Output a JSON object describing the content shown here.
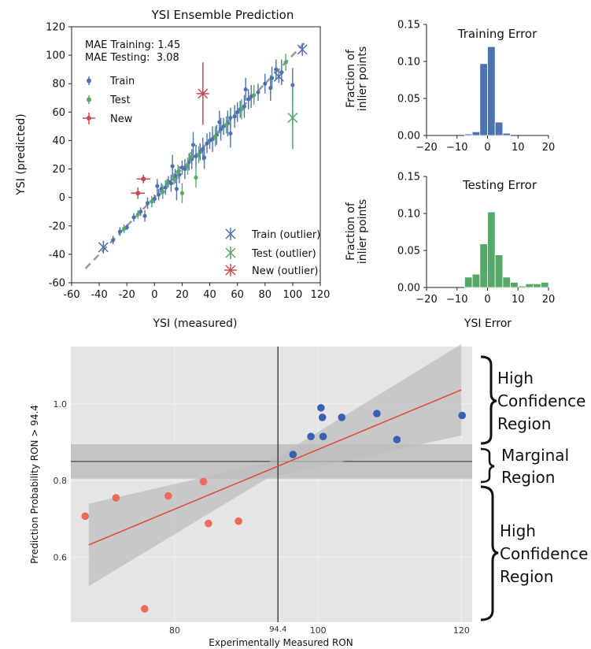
{
  "charts": {
    "scatter": {
      "title": "YSI Ensemble Prediction",
      "xlabel": "YSI (measured)",
      "ylabel": "YSI (predicted)",
      "mae_training": "MAE Training: 1.45",
      "mae_testing": "MAE Testing:  3.08",
      "legend_train": "Train",
      "legend_test": "Test",
      "legend_new": "New",
      "legend_train_outlier": "Train (outlier)",
      "legend_test_outlier": "Test (outlier)",
      "legend_new_outlier": "New (outlier)"
    },
    "hist_train": {
      "title": "Training Error",
      "ylabel_line1": "Fraction of",
      "ylabel_line2": "inlier points"
    },
    "hist_test": {
      "title": "Testing Error",
      "ylabel_line1": "Fraction of",
      "ylabel_line2": "inlier points",
      "xlabel": "YSI Error"
    },
    "ron": {
      "xlabel": "Experimentally Measured RON",
      "ylabel": "Prediction Probability  RON > 94.4",
      "vline_label": "94.4"
    }
  },
  "annotations": {
    "high_top": [
      "High",
      "Confidence",
      "Region"
    ],
    "marginal": [
      "Marginal",
      "Region"
    ],
    "high_bottom": [
      "High",
      "Confidence",
      "Region"
    ]
  },
  "colors": {
    "train": "#4c72b0",
    "test": "#55a868",
    "new": "#c44e52",
    "ron_high": "#3a5fb8",
    "ron_low": "#ee6a5a",
    "fit_line": "#e24a33",
    "panel_bg": "#e5e5e5"
  },
  "chart_data": [
    {
      "type": "scatter",
      "title": "YSI Ensemble Prediction",
      "xlabel": "YSI (measured)",
      "ylabel": "YSI (predicted)",
      "xlim": [
        -60,
        120
      ],
      "ylim": [
        -60,
        120
      ],
      "xticks": [
        -60,
        -40,
        -20,
        0,
        20,
        40,
        60,
        80,
        100,
        120
      ],
      "yticks": [
        -60,
        -40,
        -20,
        0,
        20,
        40,
        60,
        80,
        100,
        120
      ],
      "reference_line": [
        [
          -50,
          -50
        ],
        [
          110,
          110
        ]
      ],
      "legend": [
        "Train",
        "Test",
        "New",
        "Train (outlier)",
        "Test (outlier)",
        "New (outlier)"
      ],
      "series": [
        {
          "name": "Train",
          "points": [
            [
              -30,
              -30,
              3
            ],
            [
              -25,
              -24,
              3
            ],
            [
              -20,
              -21,
              2
            ],
            [
              -15,
              -14,
              3
            ],
            [
              -10,
              -10,
              3
            ],
            [
              -5,
              -4,
              4
            ],
            [
              0,
              -1,
              3
            ],
            [
              3,
              2,
              4
            ],
            [
              5,
              6,
              4
            ],
            [
              8,
              7,
              5
            ],
            [
              10,
              11,
              4
            ],
            [
              12,
              10,
              6
            ],
            [
              15,
              15,
              5
            ],
            [
              18,
              16,
              6
            ],
            [
              20,
              21,
              5
            ],
            [
              22,
              20,
              7
            ],
            [
              25,
              25,
              6
            ],
            [
              27,
              27,
              7
            ],
            [
              30,
              29,
              8
            ],
            [
              33,
              32,
              6
            ],
            [
              35,
              34,
              8
            ],
            [
              38,
              38,
              7
            ],
            [
              40,
              40,
              6
            ],
            [
              42,
              41,
              9
            ],
            [
              45,
              44,
              7
            ],
            [
              48,
              48,
              8
            ],
            [
              50,
              50,
              6
            ],
            [
              53,
              52,
              9
            ],
            [
              55,
              56,
              7
            ],
            [
              58,
              57,
              8
            ],
            [
              60,
              60,
              7
            ],
            [
              62,
              62,
              6
            ],
            [
              65,
              64,
              8
            ],
            [
              68,
              69,
              7
            ],
            [
              70,
              71,
              8
            ],
            [
              75,
              74,
              6
            ],
            [
              80,
              80,
              7
            ],
            [
              85,
              84,
              8
            ],
            [
              88,
              90,
              7
            ],
            [
              92,
              88,
              9
            ],
            [
              100,
              79,
              12
            ],
            [
              2,
              8,
              5
            ],
            [
              13,
              22,
              8
            ],
            [
              28,
              37,
              9
            ],
            [
              47,
              53,
              8
            ],
            [
              16,
              6,
              8
            ],
            [
              36,
              28,
              8
            ],
            [
              55,
              45,
              10
            ],
            [
              -7,
              -13,
              4
            ],
            [
              66,
              76,
              8
            ],
            [
              84,
              77,
              9
            ]
          ]
        },
        {
          "name": "Test",
          "points": [
            [
              -22,
              -22,
              3
            ],
            [
              -12,
              -12,
              3
            ],
            [
              -2,
              -3,
              4
            ],
            [
              6,
              4,
              5
            ],
            [
              14,
              13,
              4
            ],
            [
              17,
              18,
              5
            ],
            [
              24,
              22,
              6
            ],
            [
              32,
              30,
              6
            ],
            [
              44,
              43,
              7
            ],
            [
              52,
              51,
              6
            ],
            [
              63,
              62,
              7
            ],
            [
              72,
              72,
              7
            ],
            [
              95,
              95,
              6
            ],
            [
              9,
              10,
              3
            ],
            [
              26,
              28,
              4
            ],
            [
              20,
              3,
              7
            ],
            [
              30,
              14,
              7
            ]
          ]
        },
        {
          "name": "New",
          "points": [
            [
              -8,
              13,
              3
            ],
            [
              -12,
              3,
              4
            ]
          ]
        },
        {
          "name": "Train (outlier)",
          "points": [
            [
              -37,
              -35
            ],
            [
              107,
              104
            ],
            [
              90,
              85
            ]
          ]
        },
        {
          "name": "Test (outlier)",
          "points": [
            [
              100,
              56
            ]
          ]
        },
        {
          "name": "New (outlier)",
          "points": [
            [
              35,
              73
            ]
          ]
        }
      ]
    },
    {
      "type": "bar",
      "title": "Training Error",
      "ylabel": "Fraction of inlier points",
      "xlim": [
        -20,
        20
      ],
      "ylim": [
        0,
        0.15
      ],
      "xticks": [
        -20,
        -10,
        0,
        10,
        20
      ],
      "yticks": [
        0.0,
        0.05,
        0.1,
        0.15
      ],
      "bin_width": 2.5,
      "bin_edges": [
        -7.5,
        -5,
        -2.5,
        0,
        2.5,
        5,
        7.5
      ],
      "values": [
        0.002,
        0.005,
        0.097,
        0.12,
        0.018,
        0.003
      ]
    },
    {
      "type": "bar",
      "title": "Testing Error",
      "xlabel": "YSI Error",
      "ylabel": "Fraction of inlier points",
      "xlim": [
        -20,
        20
      ],
      "ylim": [
        0,
        0.15
      ],
      "xticks": [
        -20,
        -10,
        0,
        10,
        20
      ],
      "yticks": [
        0.0,
        0.05,
        0.1,
        0.15
      ],
      "bin_edges": [
        -7.5,
        -5,
        -2.5,
        0,
        2.5,
        5,
        7.5,
        10,
        12.5,
        15,
        17.5,
        20
      ],
      "values": [
        0.014,
        0.018,
        0.059,
        0.102,
        0.044,
        0.014,
        0.007,
        0.002,
        0.005,
        0.005,
        0.007
      ]
    },
    {
      "type": "scatter",
      "xlabel": "Experimentally Measured RON",
      "ylabel": "Prediction Probability  RON > 94.4",
      "xlim": [
        65.5,
        121.5
      ],
      "ylim": [
        0.43,
        1.15
      ],
      "xticks": [
        80,
        94.4,
        100,
        120
      ],
      "yticks": [
        0.6,
        0.8,
        1.0
      ],
      "vline": 94.4,
      "hline": 0.85,
      "band": [
        0.805,
        0.895
      ],
      "fit_line": [
        [
          68,
          0.632
        ],
        [
          120,
          1.037
        ]
      ],
      "series": [
        {
          "name": "high",
          "points": [
            [
              96.5,
              0.868
            ],
            [
              99,
              0.915
            ],
            [
              100.4,
              0.99
            ],
            [
              100.6,
              0.965
            ],
            [
              100.7,
              0.915
            ],
            [
              103.3,
              0.965
            ],
            [
              108.2,
              0.975
            ],
            [
              111,
              0.907
            ],
            [
              120.1,
              0.97
            ]
          ]
        },
        {
          "name": "low",
          "points": [
            [
              67.5,
              0.707
            ],
            [
              71.8,
              0.755
            ],
            [
              75.8,
              0.465
            ],
            [
              79.1,
              0.76
            ],
            [
              84,
              0.797
            ],
            [
              84.7,
              0.688
            ],
            [
              88.9,
              0.694
            ]
          ]
        }
      ]
    }
  ]
}
